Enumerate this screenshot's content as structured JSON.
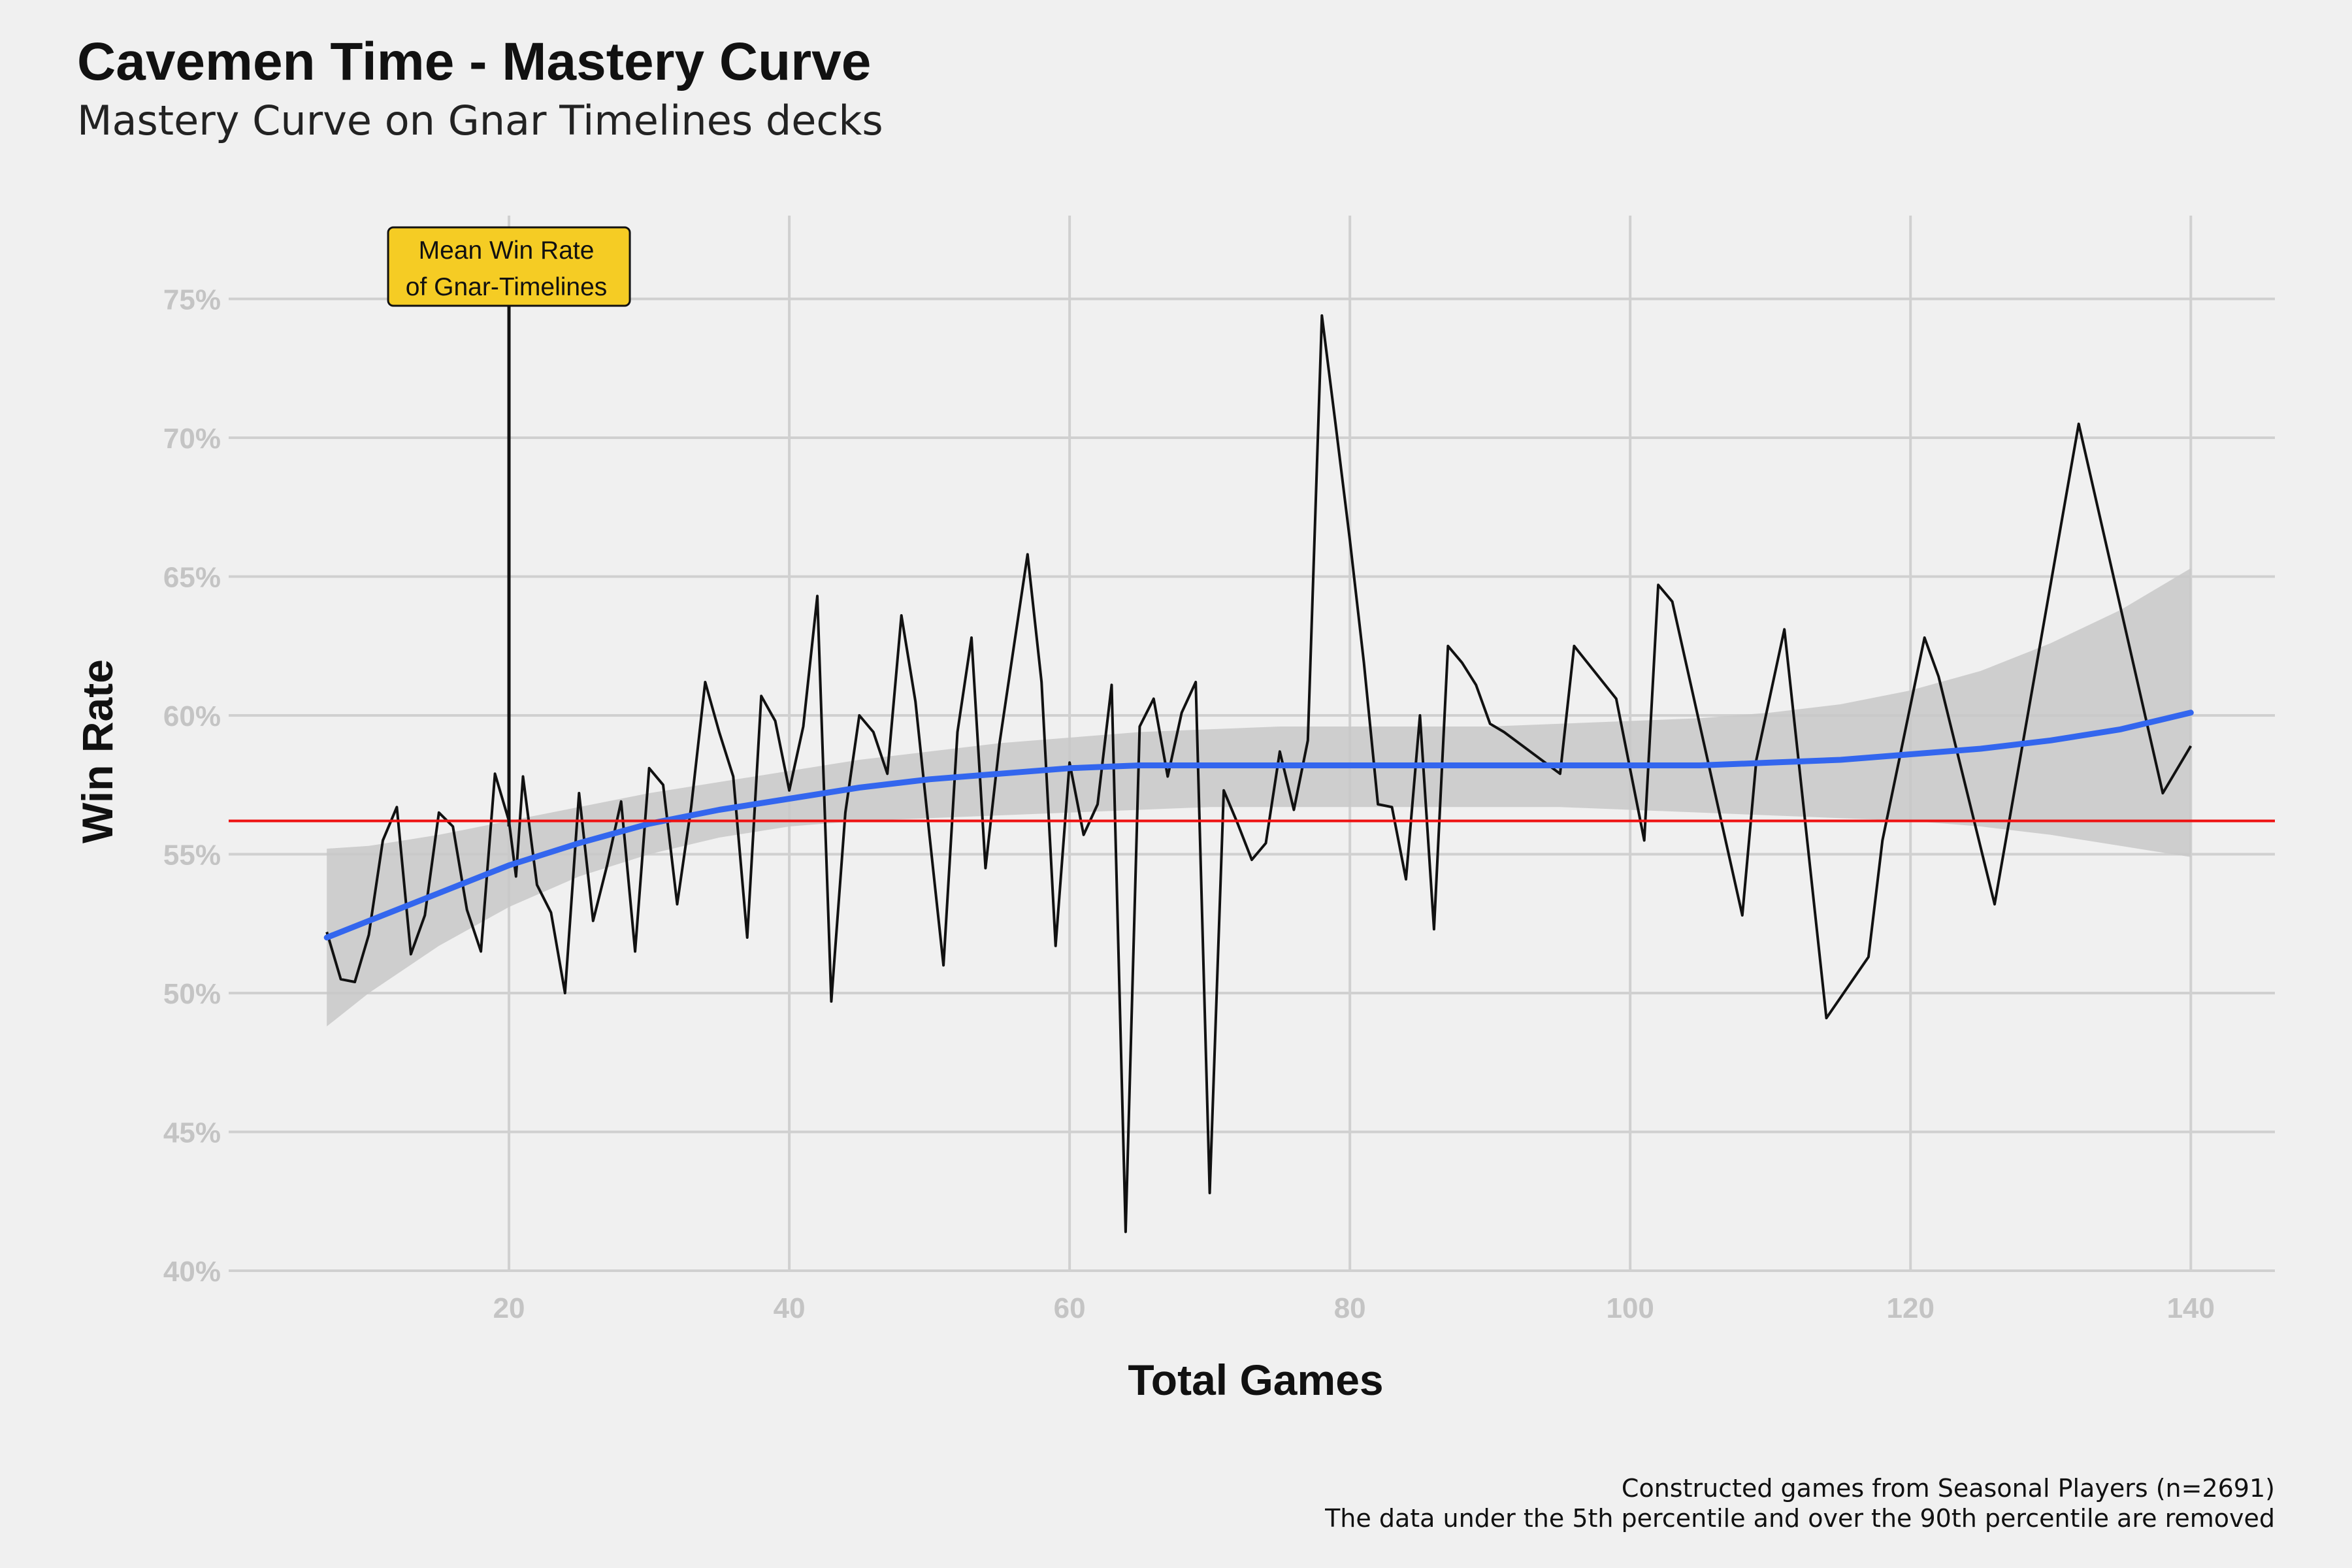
{
  "title": "Cavemen Time - Mastery Curve",
  "subtitle": "Mastery Curve on Gnar Timelines decks",
  "caption": [
    "Constructed games from Seasonal Players (n=2691)",
    "The data under the 5th percentile and over the 90th percentile are removed"
  ],
  "colors": {
    "background": "#f0f0f0",
    "grid": "#d0d0d0",
    "line": "#111111",
    "smooth": "#3366ee",
    "ribbon": "#c8c8c8",
    "mean_line": "#ee1111",
    "annotation_fill": "#f5cc24"
  },
  "chart_data": {
    "type": "line",
    "xlabel": "Total Games",
    "ylabel": "Win Rate",
    "xlim": [
      0,
      146
    ],
    "ylim": [
      0.4,
      0.78
    ],
    "x_ticks": [
      20,
      40,
      60,
      80,
      100,
      120,
      140
    ],
    "y_ticks": [
      0.4,
      0.45,
      0.5,
      0.55,
      0.6,
      0.65,
      0.7,
      0.75
    ],
    "y_tick_labels": [
      "40%",
      "45%",
      "50%",
      "55%",
      "60%",
      "65%",
      "70%",
      "75%"
    ],
    "grid": true,
    "mean_win_rate": 0.562,
    "annotation": {
      "text": [
        "Mean Win Rate",
        "of Gnar-Timelines"
      ],
      "x": 20,
      "y": 0.56
    },
    "series": [
      {
        "x": [
          7,
          8,
          9,
          10,
          11,
          12,
          13,
          14,
          15,
          16,
          17,
          18,
          19,
          20,
          20.5,
          21,
          22,
          23,
          24,
          25,
          26,
          27,
          28,
          29,
          30,
          31,
          32,
          33,
          34,
          35,
          36,
          37,
          38,
          39,
          40,
          41,
          42,
          43,
          44,
          45,
          46,
          47,
          48,
          49,
          50,
          51,
          52,
          53,
          54,
          55,
          56,
          57,
          58,
          59,
          60,
          61,
          62,
          63,
          64,
          65,
          66,
          67,
          68,
          69,
          70,
          71,
          72,
          73,
          74,
          75,
          76,
          77,
          78,
          79,
          80,
          81,
          82,
          83,
          84,
          85,
          86,
          87,
          88,
          89,
          90,
          91,
          95,
          96,
          99,
          101,
          102,
          103,
          108,
          109,
          111,
          114,
          117,
          118,
          121,
          122,
          126,
          132,
          138,
          140
        ],
        "y": [
          0.522,
          0.505,
          0.504,
          0.521,
          0.555,
          0.567,
          0.514,
          0.528,
          0.565,
          0.56,
          0.53,
          0.515,
          0.579,
          0.562,
          0.542,
          0.578,
          0.539,
          0.529,
          0.5,
          0.572,
          0.526,
          0.546,
          0.569,
          0.515,
          0.581,
          0.575,
          0.532,
          0.567,
          0.612,
          0.594,
          0.578,
          0.52,
          0.607,
          0.598,
          0.573,
          0.596,
          0.643,
          0.497,
          0.565,
          0.6,
          0.594,
          0.579,
          0.636,
          0.605,
          0.557,
          0.51,
          0.594,
          0.628,
          0.545,
          0.59,
          0.624,
          0.658,
          0.612,
          0.517,
          0.583,
          0.557,
          0.568,
          0.611,
          0.414,
          0.596,
          0.606,
          0.578,
          0.601,
          0.612,
          0.428,
          0.573,
          0.561,
          0.548,
          0.554,
          0.587,
          0.566,
          0.591,
          0.744,
          0.704,
          0.663,
          0.619,
          0.568,
          0.567,
          0.541,
          0.6,
          0.523,
          0.625,
          0.619,
          0.611,
          0.597,
          0.594,
          0.579,
          0.625,
          0.606,
          0.555,
          0.647,
          0.641,
          0.528,
          0.584,
          0.631,
          0.491,
          0.513,
          0.555,
          0.628,
          0.614,
          0.532,
          0.705,
          0.572,
          0.589
        ]
      }
    ],
    "smooth": {
      "x": [
        7,
        10,
        15,
        20,
        25,
        30,
        35,
        40,
        45,
        50,
        55,
        60,
        65,
        70,
        75,
        80,
        85,
        90,
        95,
        100,
        105,
        110,
        115,
        120,
        125,
        130,
        135,
        140
      ],
      "y": [
        0.52,
        0.526,
        0.536,
        0.546,
        0.554,
        0.561,
        0.566,
        0.57,
        0.574,
        0.577,
        0.579,
        0.581,
        0.582,
        0.582,
        0.582,
        0.582,
        0.582,
        0.582,
        0.582,
        0.582,
        0.582,
        0.583,
        0.584,
        0.586,
        0.588,
        0.591,
        0.595,
        0.601
      ],
      "lower": [
        0.488,
        0.5,
        0.517,
        0.531,
        0.542,
        0.55,
        0.556,
        0.56,
        0.562,
        0.563,
        0.564,
        0.565,
        0.566,
        0.567,
        0.567,
        0.567,
        0.567,
        0.567,
        0.567,
        0.566,
        0.565,
        0.564,
        0.563,
        0.562,
        0.56,
        0.557,
        0.553,
        0.549
      ],
      "upper": [
        0.552,
        0.553,
        0.557,
        0.562,
        0.567,
        0.572,
        0.576,
        0.58,
        0.584,
        0.587,
        0.59,
        0.592,
        0.594,
        0.595,
        0.596,
        0.596,
        0.596,
        0.596,
        0.597,
        0.598,
        0.599,
        0.601,
        0.604,
        0.609,
        0.616,
        0.626,
        0.638,
        0.653
      ]
    }
  }
}
